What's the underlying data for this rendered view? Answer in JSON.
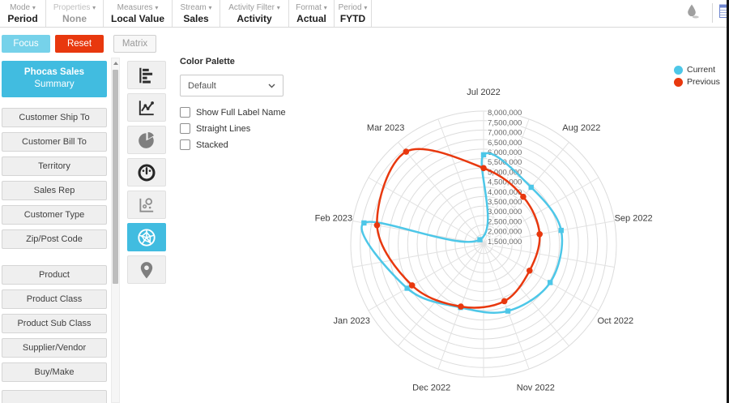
{
  "toolbar": {
    "items": [
      {
        "label": "Mode",
        "value": "Period",
        "disabled": false
      },
      {
        "label": "Properties",
        "value": "None",
        "disabled": true
      },
      {
        "label": "Measures",
        "value": "Local Value",
        "disabled": false
      },
      {
        "label": "Stream",
        "value": "Sales",
        "disabled": false
      },
      {
        "label": "Activity Filter",
        "value": "Activity",
        "disabled": false
      },
      {
        "label": "Format",
        "value": "Actual",
        "disabled": false
      },
      {
        "label": "Period",
        "value": "FYTD",
        "disabled": false
      }
    ]
  },
  "actions": {
    "focus": "Focus",
    "reset": "Reset",
    "matrix": "Matrix"
  },
  "sidebar": {
    "title_line1": "Phocas Sales",
    "title_line2": "Summary",
    "groups": [
      [
        "Customer Ship To",
        "Customer Bill To",
        "Territory",
        "Sales Rep",
        "Customer Type",
        "Zip/Post Code"
      ],
      [
        "Product",
        "Product Class",
        "Product Sub Class",
        "Supplier/Vendor",
        "Buy/Make"
      ]
    ],
    "partial_item_label": ""
  },
  "chart_types": {
    "items": [
      {
        "icon": "horizontal-bar-chart",
        "selected": false
      },
      {
        "icon": "line-chart",
        "selected": false
      },
      {
        "icon": "pie-chart",
        "selected": false
      },
      {
        "icon": "gauge",
        "selected": false
      },
      {
        "icon": "scatter-plot",
        "selected": false
      },
      {
        "icon": "radar-chart",
        "selected": true
      },
      {
        "icon": "map-pin",
        "selected": false
      }
    ]
  },
  "options": {
    "color_palette_label": "Color Palette",
    "palette_value": "Default",
    "checkboxes": [
      {
        "label": "Show Full Label Name",
        "checked": false
      },
      {
        "label": "Straight Lines",
        "checked": false
      },
      {
        "label": "Stacked",
        "checked": false
      }
    ]
  },
  "legend": {
    "items": [
      {
        "label": "Current",
        "color": "#4dc7e8"
      },
      {
        "label": "Previous",
        "color": "#e8380e"
      }
    ]
  },
  "chart_data": {
    "type": "radar",
    "categories": [
      "Jul 2022",
      "Aug 2022",
      "Sep 2022",
      "Oct 2022",
      "Nov 2022",
      "Dec 2022",
      "Jan 2023",
      "Feb 2023",
      "Mar 2023"
    ],
    "series": [
      {
        "name": "Current",
        "color": "#4dc7e8",
        "marker": "square",
        "values": [
          5700000,
          4900000,
          5150000,
          5050000,
          4750000,
          4550000,
          5650000,
          7400000,
          1300000
        ]
      },
      {
        "name": "Previous",
        "color": "#e8380e",
        "marker": "circle",
        "values": [
          5000000,
          4250000,
          4000000,
          3800000,
          4200000,
          4500000,
          5350000,
          6700000,
          7350000
        ]
      }
    ],
    "axis": {
      "min": 1000000,
      "max": 8000000,
      "step": 500000,
      "tick_labels": [
        "1,500,000",
        "2,000,000",
        "2,500,000",
        "3,000,000",
        "3,500,000",
        "4,000,000",
        "4,500,000",
        "5,000,000",
        "5,500,000",
        "6,000,000",
        "6,500,000",
        "7,000,000",
        "7,500,000",
        "8,000,000"
      ]
    },
    "grid": {
      "rings": 14,
      "spokes": 18,
      "grid_color": "#dcdcdc"
    },
    "smooth": true,
    "legend_position": "top-right"
  }
}
